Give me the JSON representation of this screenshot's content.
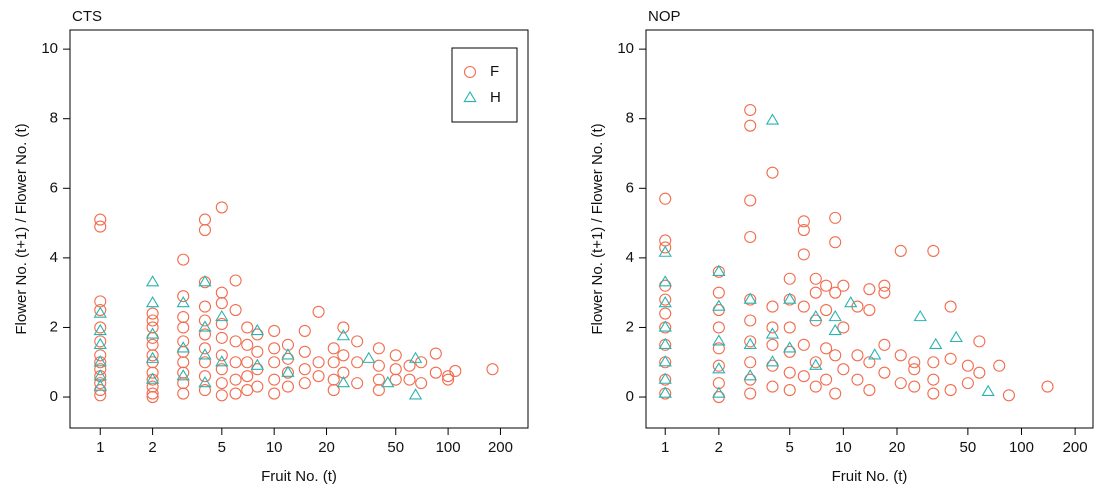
{
  "chart_data": [
    {
      "type": "scatter",
      "title": "CTS",
      "x_label": "Fruit No. (t)",
      "y_label": "Flower No. (t+1) / Flower No. (t)",
      "log_x": true,
      "xlim": [
        0.67,
        288
      ],
      "ylim": [
        -0.89,
        10.55
      ],
      "xticks": [
        1,
        2,
        5,
        10,
        20,
        50,
        100,
        200
      ],
      "yticks": [
        0,
        2,
        4,
        6,
        8,
        10
      ],
      "legend": "topright",
      "series": [
        {
          "name": "F",
          "color": "#f26d4f",
          "marker": "circle",
          "x": [
            1,
            1,
            1,
            1,
            1,
            1,
            1,
            1,
            1,
            1,
            1,
            1,
            1,
            2,
            2,
            2,
            2,
            2,
            2,
            2,
            2,
            2,
            2,
            2,
            2,
            3,
            3,
            3,
            3,
            3,
            3,
            3,
            3,
            3,
            3,
            4,
            4,
            4,
            4,
            4,
            4,
            4,
            4,
            4,
            4,
            5,
            5,
            5,
            5,
            5,
            5,
            5,
            5,
            5,
            6,
            6,
            6,
            6,
            6,
            6,
            7,
            7,
            7,
            7,
            7,
            8,
            8,
            8,
            8,
            10,
            10,
            10,
            10,
            10,
            12,
            12,
            12,
            12,
            15,
            15,
            15,
            15,
            18,
            18,
            18,
            22,
            22,
            22,
            22,
            25,
            25,
            25,
            30,
            30,
            30,
            40,
            40,
            40,
            40,
            50,
            50,
            50,
            60,
            60,
            70,
            70,
            85,
            85,
            100,
            100,
            110,
            180
          ],
          "values": [
            5.1,
            4.9,
            2.75,
            2.5,
            2.0,
            1.6,
            1.2,
            1.0,
            0.8,
            0.6,
            0.4,
            0.2,
            0.05,
            2.4,
            2.2,
            2.0,
            1.7,
            1.5,
            1.2,
            1.0,
            0.7,
            0.5,
            0.3,
            0.1,
            0,
            3.95,
            2.9,
            2.3,
            2.0,
            1.6,
            1.3,
            1.0,
            0.7,
            0.4,
            0.1,
            5.1,
            4.8,
            3.3,
            2.6,
            2.2,
            1.8,
            1.4,
            1.0,
            0.6,
            0.2,
            5.45,
            3.0,
            2.7,
            2.1,
            1.7,
            1.2,
            0.8,
            0.4,
            0.05,
            3.35,
            2.5,
            1.6,
            1.0,
            0.5,
            0.1,
            2.0,
            1.5,
            1.0,
            0.6,
            0.2,
            1.8,
            1.3,
            0.8,
            0.3,
            1.9,
            1.4,
            1.0,
            0.5,
            0.1,
            1.5,
            1.1,
            0.7,
            0.3,
            1.9,
            1.3,
            0.8,
            0.4,
            2.45,
            1.0,
            0.6,
            1.4,
            1.0,
            0.5,
            0.2,
            2.0,
            1.2,
            0.7,
            1.6,
            1.0,
            0.4,
            1.4,
            0.9,
            0.5,
            0.2,
            1.2,
            0.8,
            0.5,
            0.9,
            0.5,
            1.0,
            0.4,
            1.25,
            0.7,
            0.5,
            0.6,
            0.75,
            0.8
          ]
        },
        {
          "name": "H",
          "color": "#2ab3b0",
          "marker": "triangle",
          "x": [
            1,
            1,
            1,
            1,
            1,
            1,
            2,
            2,
            2,
            2,
            2,
            3,
            3,
            3,
            4,
            4,
            4,
            4,
            5,
            5,
            8,
            8,
            12,
            12,
            25,
            25,
            35,
            45,
            65,
            65
          ],
          "values": [
            2.4,
            1.9,
            1.5,
            1.0,
            0.6,
            0.3,
            3.3,
            2.7,
            1.8,
            1.1,
            0.5,
            2.7,
            1.4,
            0.6,
            3.3,
            2.0,
            1.2,
            0.4,
            2.3,
            1.0,
            1.9,
            0.9,
            1.2,
            0.7,
            1.75,
            0.4,
            1.1,
            0.4,
            1.1,
            0.05
          ]
        }
      ]
    },
    {
      "type": "scatter",
      "title": "NOP",
      "x_label": "Fruit No. (t)",
      "y_label": "Flower No. (t+1) / Flower No. (t)",
      "log_x": true,
      "xlim": [
        0.78,
        252
      ],
      "ylim": [
        -0.89,
        10.55
      ],
      "xticks": [
        1,
        2,
        5,
        10,
        20,
        50,
        100,
        200
      ],
      "yticks": [
        0,
        2,
        4,
        6,
        8,
        10
      ],
      "series": [
        {
          "color": "#f26d4f",
          "marker": "circle",
          "x": [
            1,
            1,
            1,
            1,
            1,
            1,
            1,
            1,
            1,
            1,
            1,
            2,
            2,
            2,
            2,
            2,
            2,
            2,
            2,
            3,
            3,
            3,
            3,
            3,
            3,
            3,
            3,
            3,
            3,
            4,
            4,
            4,
            4,
            4,
            4,
            5,
            5,
            5,
            5,
            5,
            5,
            6,
            6,
            6,
            6,
            6,
            6,
            7,
            7,
            7,
            7,
            7,
            8,
            8,
            8,
            8,
            9,
            9,
            9,
            9,
            9,
            10,
            10,
            10,
            12,
            12,
            12,
            14,
            14,
            14,
            14,
            17,
            17,
            17,
            17,
            21,
            21,
            21,
            25,
            25,
            25,
            32,
            32,
            32,
            32,
            40,
            40,
            40,
            50,
            50,
            58,
            58,
            75,
            85,
            140
          ],
          "values": [
            5.7,
            4.5,
            4.3,
            3.2,
            2.8,
            2.4,
            2.0,
            1.5,
            1.0,
            0.5,
            0.1,
            3.6,
            3.0,
            2.5,
            2.0,
            1.4,
            0.9,
            0.4,
            0,
            8.25,
            7.8,
            5.65,
            4.6,
            2.8,
            2.2,
            1.6,
            1.0,
            0.5,
            0.1,
            6.45,
            2.6,
            2.0,
            1.5,
            0.9,
            0.3,
            3.4,
            2.8,
            2.0,
            1.3,
            0.7,
            0.2,
            5.05,
            4.8,
            4.1,
            2.6,
            1.5,
            0.6,
            3.4,
            3.0,
            2.2,
            1.0,
            0.3,
            3.2,
            2.5,
            1.4,
            0.5,
            5.15,
            4.45,
            3.0,
            1.2,
            0.1,
            3.2,
            2.0,
            0.8,
            2.6,
            1.2,
            0.5,
            3.1,
            2.5,
            1.0,
            0.2,
            3.2,
            3.0,
            1.5,
            0.7,
            4.2,
            1.2,
            0.4,
            1.0,
            0.3,
            0.8,
            4.2,
            1.0,
            0.5,
            0.1,
            2.6,
            1.1,
            0.2,
            0.9,
            0.4,
            1.6,
            0.7,
            0.9,
            0.05,
            0.3
          ]
        },
        {
          "color": "#2ab3b0",
          "marker": "triangle",
          "x": [
            1,
            1,
            1,
            1,
            1,
            1,
            1,
            1,
            2,
            2,
            2,
            2,
            2,
            3,
            3,
            3,
            4,
            4,
            4,
            5,
            5,
            7,
            7,
            9,
            9,
            11,
            15,
            27,
            33,
            43,
            65
          ],
          "values": [
            4.15,
            3.3,
            2.7,
            2.0,
            1.5,
            1.0,
            0.5,
            0.1,
            3.6,
            2.6,
            1.6,
            0.8,
            0.1,
            2.8,
            1.5,
            0.6,
            7.95,
            1.8,
            1.0,
            2.8,
            1.4,
            2.3,
            0.9,
            2.3,
            1.9,
            2.7,
            1.2,
            2.3,
            1.5,
            1.7,
            0.15
          ]
        }
      ]
    }
  ]
}
